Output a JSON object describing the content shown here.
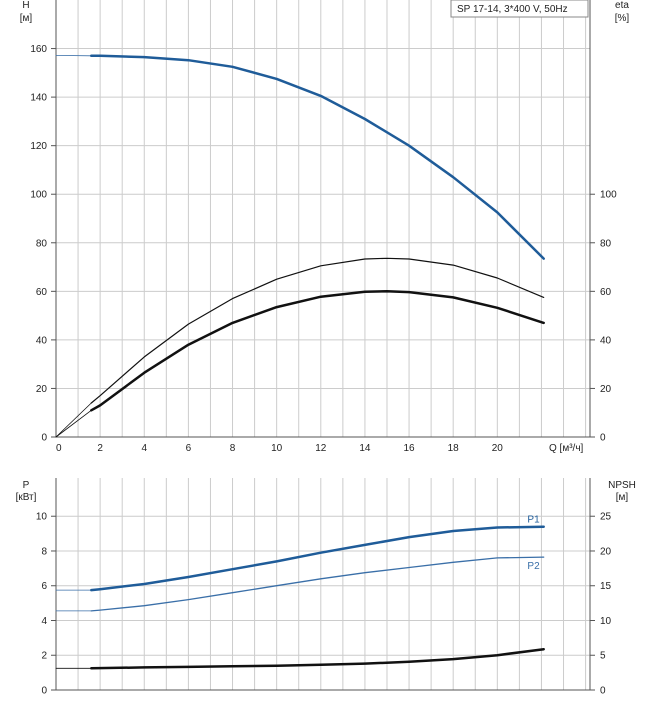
{
  "legend_box": "SP 17-14, 3*400 V, 50Hz",
  "colors": {
    "blue": "#1f5c99",
    "blue_light": "#3a6fa8",
    "black": "#111111",
    "grid": "#cccccc",
    "axis": "#555555"
  },
  "chart_data": [
    {
      "type": "line",
      "panel": "upper",
      "left_axis": {
        "label_line1": "H",
        "label_line2": "[м]",
        "ticks": [
          0,
          20,
          40,
          60,
          80,
          100,
          120,
          140,
          160
        ],
        "ylim": [
          0,
          180
        ]
      },
      "right_axis": {
        "label_line1": "eta",
        "label_line2": "[%]",
        "ticks": [
          0,
          20,
          40,
          60,
          80,
          100
        ],
        "ylim": [
          0,
          180
        ]
      },
      "x_axis": {
        "label": "Q [м³/ч]",
        "ticks": [
          0,
          2,
          4,
          6,
          8,
          10,
          12,
          14,
          16,
          18,
          20
        ],
        "xlim": [
          0,
          24.2
        ]
      },
      "grid": true,
      "series": [
        {
          "key": "H_thin",
          "color": "blue_light",
          "width": 0.8,
          "x": [
            0,
            1.6
          ],
          "y": [
            157.2,
            157.0
          ]
        },
        {
          "key": "H",
          "color": "blue",
          "width": 2.5,
          "x": [
            1.6,
            2,
            4,
            6,
            8,
            10,
            12,
            14,
            16,
            18,
            20,
            22.1
          ],
          "y": [
            157.0,
            157.0,
            156.5,
            155.2,
            152.5,
            147.5,
            140.5,
            131.0,
            120.0,
            107.0,
            92.5,
            73.5
          ]
        },
        {
          "key": "eta_thin_upper",
          "color": "black",
          "width": 1.2,
          "x": [
            1.6,
            2,
            4,
            6,
            8,
            10,
            12,
            14,
            15,
            16,
            18,
            20,
            22.1
          ],
          "y": [
            14.0,
            17.0,
            33.0,
            46.5,
            57.0,
            65.0,
            70.5,
            73.3,
            73.6,
            73.3,
            70.8,
            65.5,
            57.5
          ]
        },
        {
          "key": "eta_thick_lower",
          "color": "black",
          "width": 2.5,
          "x": [
            1.6,
            2,
            4,
            6,
            8,
            10,
            12,
            14,
            15,
            16,
            18,
            20,
            22.1
          ],
          "y": [
            11.0,
            13.0,
            26.5,
            38.0,
            47.0,
            53.5,
            57.8,
            59.8,
            60.0,
            59.7,
            57.5,
            53.2,
            47.0
          ]
        },
        {
          "key": "eta_origin_thin",
          "color": "black",
          "width": 0.8,
          "x": [
            0,
            1.6
          ],
          "y": [
            0,
            14.0
          ]
        },
        {
          "key": "eta_origin_thin2",
          "color": "black",
          "width": 0.8,
          "x": [
            0,
            1.6
          ],
          "y": [
            0,
            11.0
          ]
        }
      ]
    },
    {
      "type": "line",
      "panel": "lower",
      "left_axis": {
        "label_line1": "P",
        "label_line2": "[кВт]",
        "ticks": [
          0,
          2,
          4,
          6,
          8,
          10
        ],
        "ylim": [
          0,
          12.2
        ]
      },
      "right_axis": {
        "label_line1": "NPSH",
        "label_line2": "[м]",
        "ticks": [
          0,
          5,
          10,
          15,
          20,
          25
        ],
        "ylim": [
          0,
          30.5
        ]
      },
      "x_axis": {
        "xlim": [
          0,
          24.2
        ]
      },
      "grid": true,
      "series": [
        {
          "key": "P1_thin",
          "color": "blue_light",
          "width": 0.8,
          "x": [
            0,
            1.6
          ],
          "y": [
            5.75,
            5.75
          ]
        },
        {
          "key": "P1",
          "name": "P1",
          "color": "blue",
          "width": 2.5,
          "x": [
            1.6,
            2,
            4,
            6,
            8,
            10,
            12,
            14,
            16,
            18,
            20,
            22.1
          ],
          "y": [
            5.75,
            5.8,
            6.1,
            6.5,
            6.95,
            7.4,
            7.9,
            8.35,
            8.8,
            9.15,
            9.35,
            9.4
          ]
        },
        {
          "key": "P2_thin",
          "color": "blue_light",
          "width": 0.8,
          "x": [
            0,
            1.6
          ],
          "y": [
            4.55,
            4.55
          ]
        },
        {
          "key": "P2",
          "name": "P2",
          "color": "blue_light",
          "width": 1.3,
          "x": [
            1.6,
            2,
            4,
            6,
            8,
            10,
            12,
            14,
            16,
            18,
            20,
            22.1
          ],
          "y": [
            4.55,
            4.6,
            4.85,
            5.2,
            5.6,
            6.0,
            6.4,
            6.75,
            7.05,
            7.35,
            7.6,
            7.65
          ]
        },
        {
          "key": "NPSH_thin",
          "color": "black",
          "width": 0.8,
          "x": [
            0,
            1.6
          ],
          "y": [
            1.25,
            1.25
          ]
        },
        {
          "key": "NPSH",
          "color": "black",
          "width": 2.5,
          "x": [
            1.6,
            4,
            6,
            8,
            10,
            12,
            14,
            16,
            18,
            20,
            22.1
          ],
          "y": [
            1.25,
            1.3,
            1.33,
            1.37,
            1.4,
            1.45,
            1.52,
            1.62,
            1.78,
            2.0,
            2.35
          ]
        }
      ]
    }
  ]
}
